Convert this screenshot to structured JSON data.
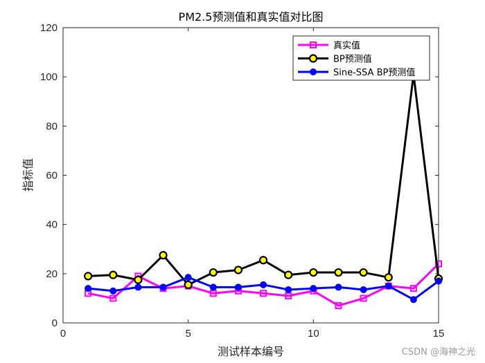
{
  "chart_data": {
    "type": "line",
    "title": "PM2.5预测值和真实值对比图",
    "xlabel": "测试样本编号",
    "ylabel": "指标值",
    "xlim": [
      0,
      15
    ],
    "ylim": [
      0,
      120
    ],
    "xticks": [
      0,
      5,
      10,
      15
    ],
    "yticks": [
      0,
      20,
      40,
      60,
      80,
      100,
      120
    ],
    "grid": false,
    "legend_position": "top-right",
    "x": [
      1,
      2,
      3,
      4,
      5,
      6,
      7,
      8,
      9,
      10,
      11,
      12,
      13,
      14,
      15
    ],
    "series": [
      {
        "name": "真实值",
        "color": "#ff00ff",
        "marker": "square",
        "marker_fill": "none",
        "values": [
          12,
          10,
          19,
          14,
          15,
          12,
          13,
          12,
          11,
          13,
          7,
          10,
          15,
          14,
          24
        ]
      },
      {
        "name": "BP预测值",
        "color": "#000000",
        "marker": "circle",
        "marker_fill": "#ffff00",
        "values": [
          19,
          19.5,
          17.5,
          27.5,
          15.5,
          20.5,
          21.5,
          25.5,
          19.5,
          20.5,
          20.5,
          20.5,
          18.5,
          101,
          18
        ]
      },
      {
        "name": "Sine-SSA BP预测值",
        "color": "#0000ff",
        "marker": "circle",
        "marker_fill": "#0000ff",
        "values": [
          14,
          13,
          14.5,
          14.5,
          18.5,
          14.5,
          14.5,
          15.5,
          13.5,
          14,
          14.5,
          13.5,
          15,
          9.5,
          17
        ]
      }
    ]
  },
  "watermark": "CSDN @海神之光"
}
